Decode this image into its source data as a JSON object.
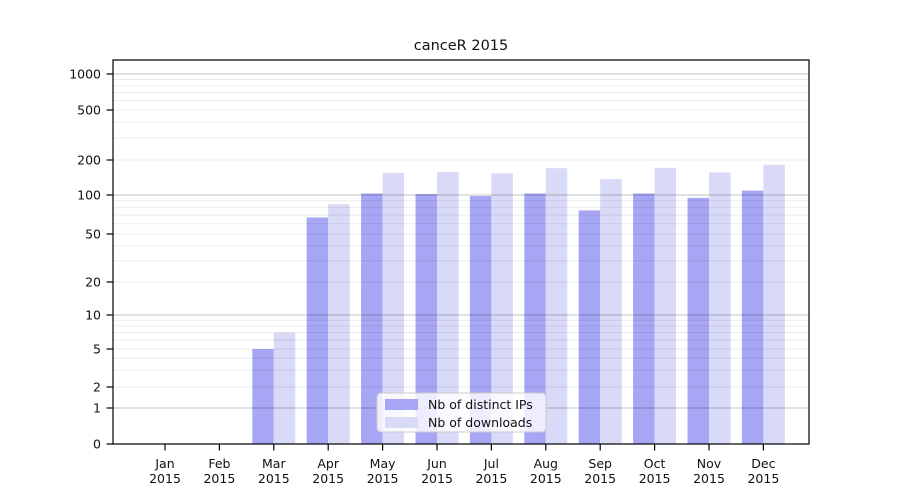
{
  "title": "canceR 2015",
  "chart_data": {
    "type": "bar",
    "title": "canceR 2015",
    "categories": [
      "Jan",
      "Feb",
      "Mar",
      "Apr",
      "May",
      "Jun",
      "Jul",
      "Aug",
      "Sep",
      "Oct",
      "Nov",
      "Dec"
    ],
    "x_year": "2015",
    "series": [
      {
        "name": "Nb of distinct IPs",
        "color": "#a6a6f4",
        "values": [
          0,
          0,
          5,
          67,
          103,
          102,
          98,
          103,
          76,
          103,
          95,
          109
        ]
      },
      {
        "name": "Nb of downloads",
        "color": "#d9d9f8",
        "values": [
          0,
          0,
          7,
          85,
          155,
          158,
          154,
          170,
          137,
          171,
          156,
          182
        ]
      }
    ],
    "y_ticks": [
      0,
      1,
      2,
      5,
      10,
      20,
      50,
      100,
      200,
      500,
      1000
    ],
    "y_scale": "log",
    "ylim": [
      0,
      1000
    ],
    "grid": true,
    "legend_position": "lower center",
    "plot_background": "#ffffff",
    "grid_color_major": "rgba(0,0,0,0.24)",
    "grid_color_minor": "rgba(0,0,0,0.08)"
  }
}
